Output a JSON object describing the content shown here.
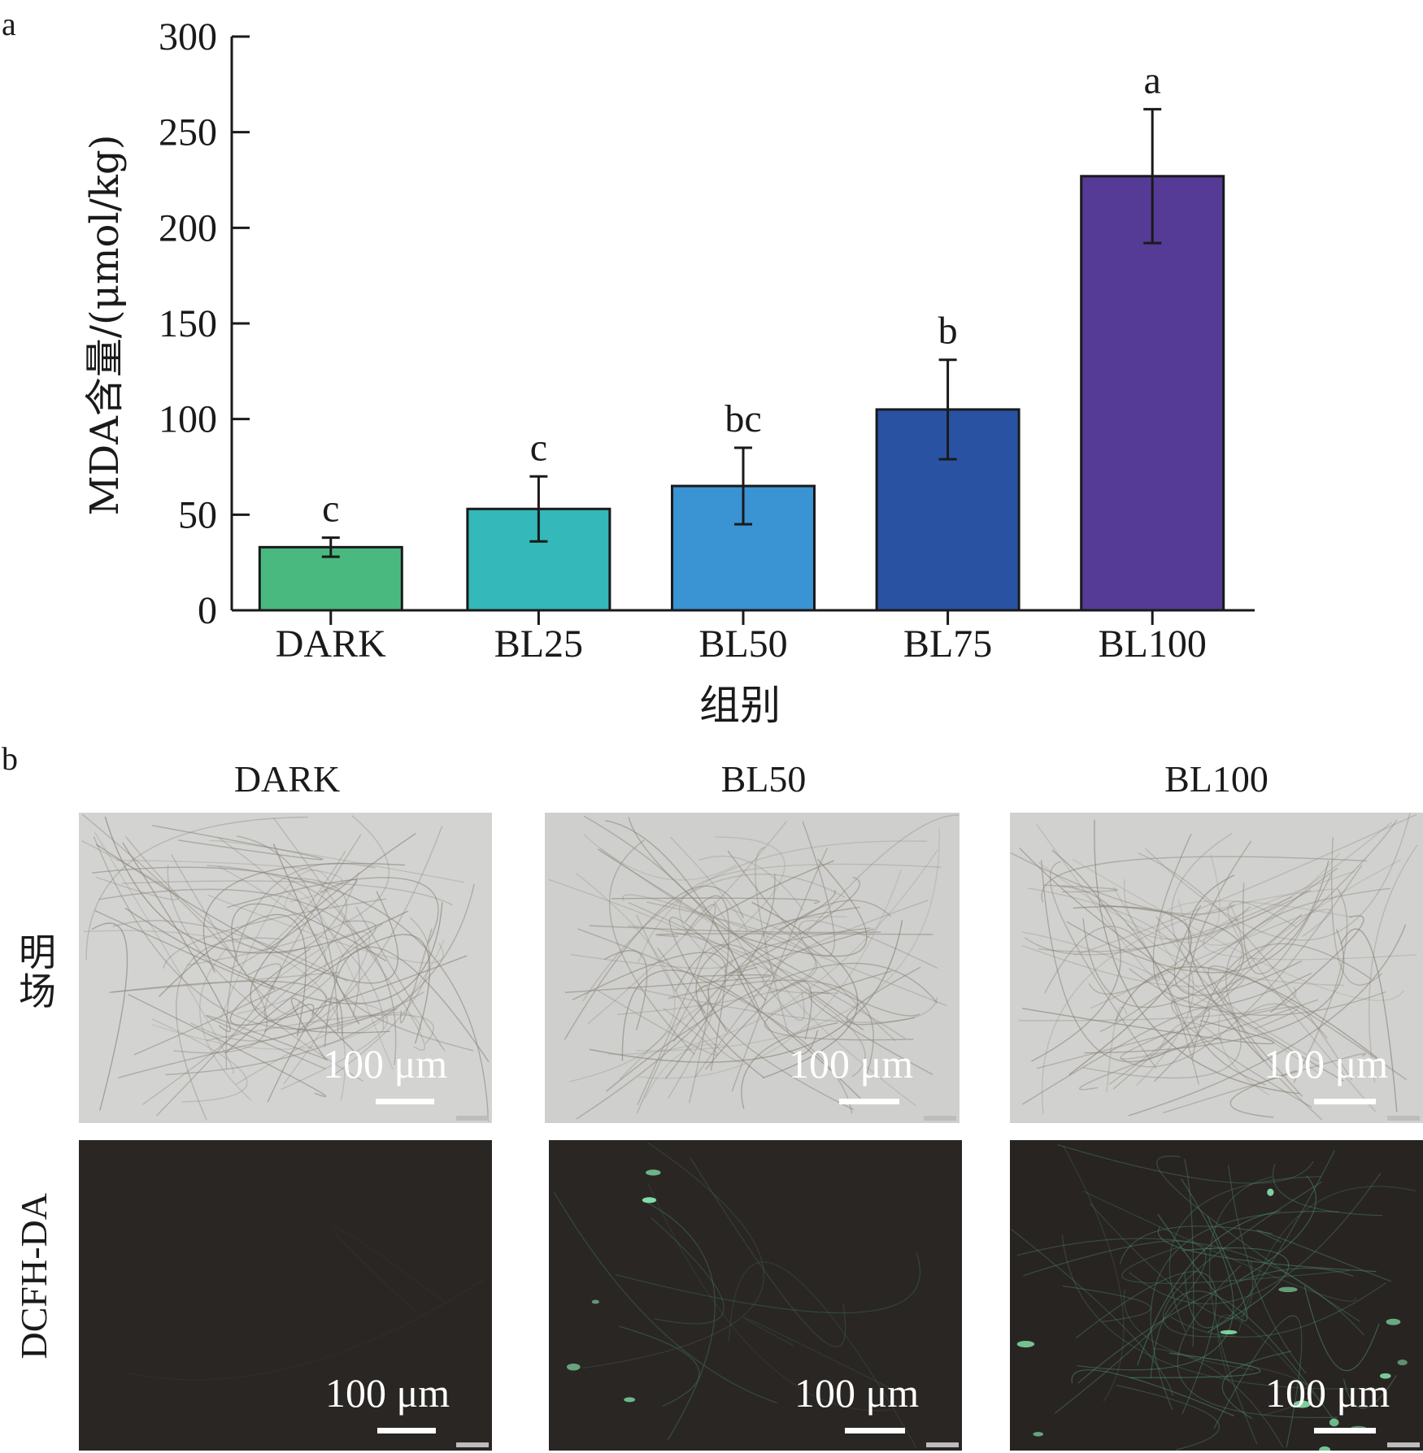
{
  "panel_labels": {
    "a": "a",
    "b": "b"
  },
  "chart_data": {
    "type": "bar",
    "categories": [
      "DARK",
      "BL25",
      "BL50",
      "BL75",
      "BL100"
    ],
    "values": [
      33,
      53,
      65,
      105,
      227
    ],
    "errors": [
      5,
      17,
      20,
      26,
      35
    ],
    "significance": [
      "c",
      "c",
      "bc",
      "b",
      "a"
    ],
    "colors": [
      "#4ab97f",
      "#34b8b9",
      "#3a93d2",
      "#2952a3",
      "#553a96"
    ],
    "ylabel": "MDA含量/(μmol/kg)",
    "xlabel": "组别",
    "ylim": [
      0,
      300
    ],
    "yticks": [
      0,
      50,
      100,
      150,
      200,
      250,
      300
    ],
    "grid": false
  },
  "micrographs": {
    "columns": [
      "DARK",
      "BL50",
      "BL100"
    ],
    "rows": [
      {
        "label": "明场",
        "type": "brightfield",
        "bg": "#d4d4d4"
      },
      {
        "label": "DCFH-DA",
        "type": "fluorescence",
        "bg": "#2a2624"
      }
    ],
    "scale_label": "100 μm",
    "fluorescence_color": "#8cf0b4"
  }
}
